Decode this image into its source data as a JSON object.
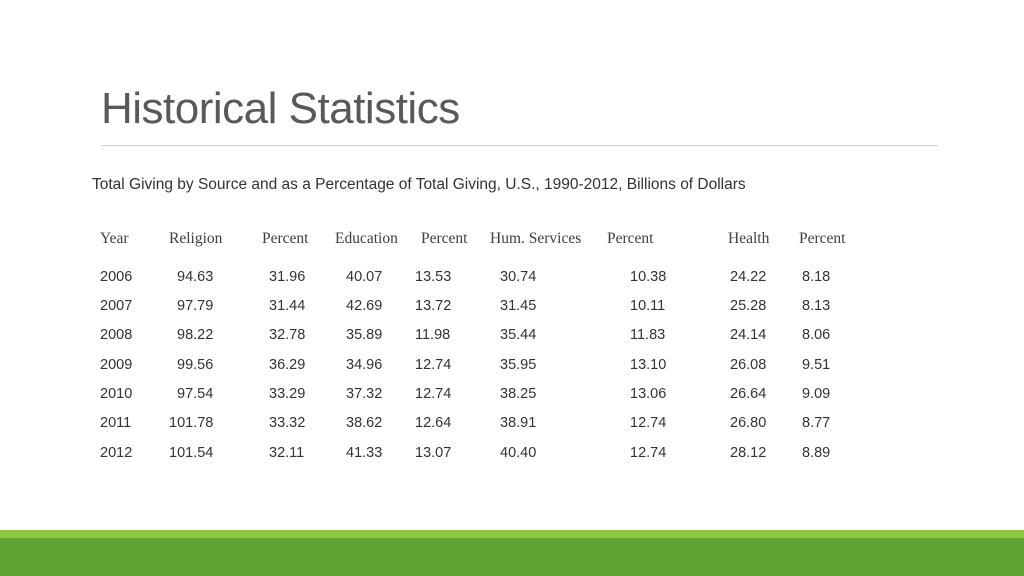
{
  "title": "Historical Statistics",
  "subtitle": "Total Giving by Source and as a Percentage of Total Giving, U.S., 1990-2012, Billions of Dollars",
  "table": {
    "headers": [
      "Year",
      "Religion",
      "Percent",
      "Education",
      "Percent",
      "Hum. Services",
      "Percent",
      "Health",
      "Percent"
    ],
    "rows": [
      [
        "2006",
        "94.63",
        "31.96",
        "40.07",
        "13.53",
        "30.74",
        "10.38",
        "24.22",
        "8.18"
      ],
      [
        "2007",
        "97.79",
        "31.44",
        "42.69",
        "13.72",
        "31.45",
        "10.11",
        "25.28",
        "8.13"
      ],
      [
        "2008",
        "98.22",
        "32.78",
        "35.89",
        "11.98",
        "35.44",
        "11.83",
        "24.14",
        "8.06"
      ],
      [
        "2009",
        "99.56",
        "36.29",
        "34.96",
        "12.74",
        "35.95",
        "13.10",
        "26.08",
        "9.51"
      ],
      [
        "2010",
        "97.54",
        "33.29",
        "37.32",
        "12.74",
        "38.25",
        "13.06",
        "26.64",
        "9.09"
      ],
      [
        "2011",
        "101.78",
        "33.32",
        "38.62",
        "12.64",
        "38.91",
        "12.74",
        "26.80",
        "8.77"
      ],
      [
        "2012",
        "101.54",
        "32.11",
        "41.33",
        "13.07",
        "40.40",
        "12.74",
        "28.12",
        "8.89"
      ]
    ]
  },
  "colors": {
    "accent_bar_light": "#8dc63f",
    "accent_bar_dark": "#62a432"
  }
}
